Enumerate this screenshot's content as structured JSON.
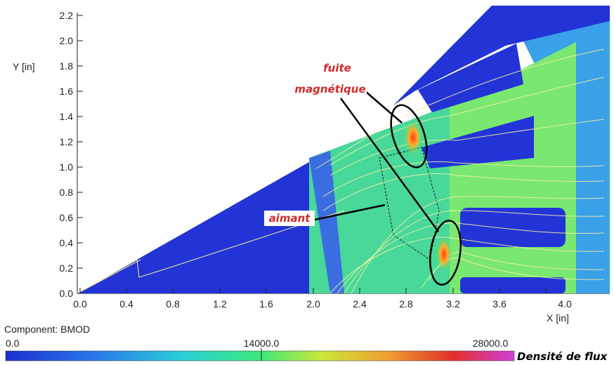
{
  "axes": {
    "y_title": "Y [in]",
    "x_title": "X [in]",
    "y_ticks": [
      "0.0",
      "0.2",
      "0.4",
      "0.6",
      "0.8",
      "1.0",
      "1.2",
      "1.4",
      "1.6",
      "1.8",
      "2.0",
      "2.2"
    ],
    "x_ticks": [
      "0.0",
      "0.4",
      "0.8",
      "1.2",
      "1.6",
      "2.0",
      "2.4",
      "2.8",
      "3.2",
      "3.6",
      "4.0"
    ],
    "x_range": [
      0.0,
      4.3
    ],
    "y_range": [
      0.0,
      2.2
    ]
  },
  "annotations": {
    "leak_line1": "fuite",
    "leak_line2": "magnétique",
    "magnet": "aimant"
  },
  "colorbar": {
    "component": "Component: BMOD",
    "min": "0.0",
    "mid": "14000.0",
    "max": "28000.0",
    "title": "Densité de flux"
  },
  "colors": {
    "low": "#2a3fdc",
    "mid": "#3ce87a",
    "high": "#d0207a",
    "leak": "#ff6a2a"
  }
}
